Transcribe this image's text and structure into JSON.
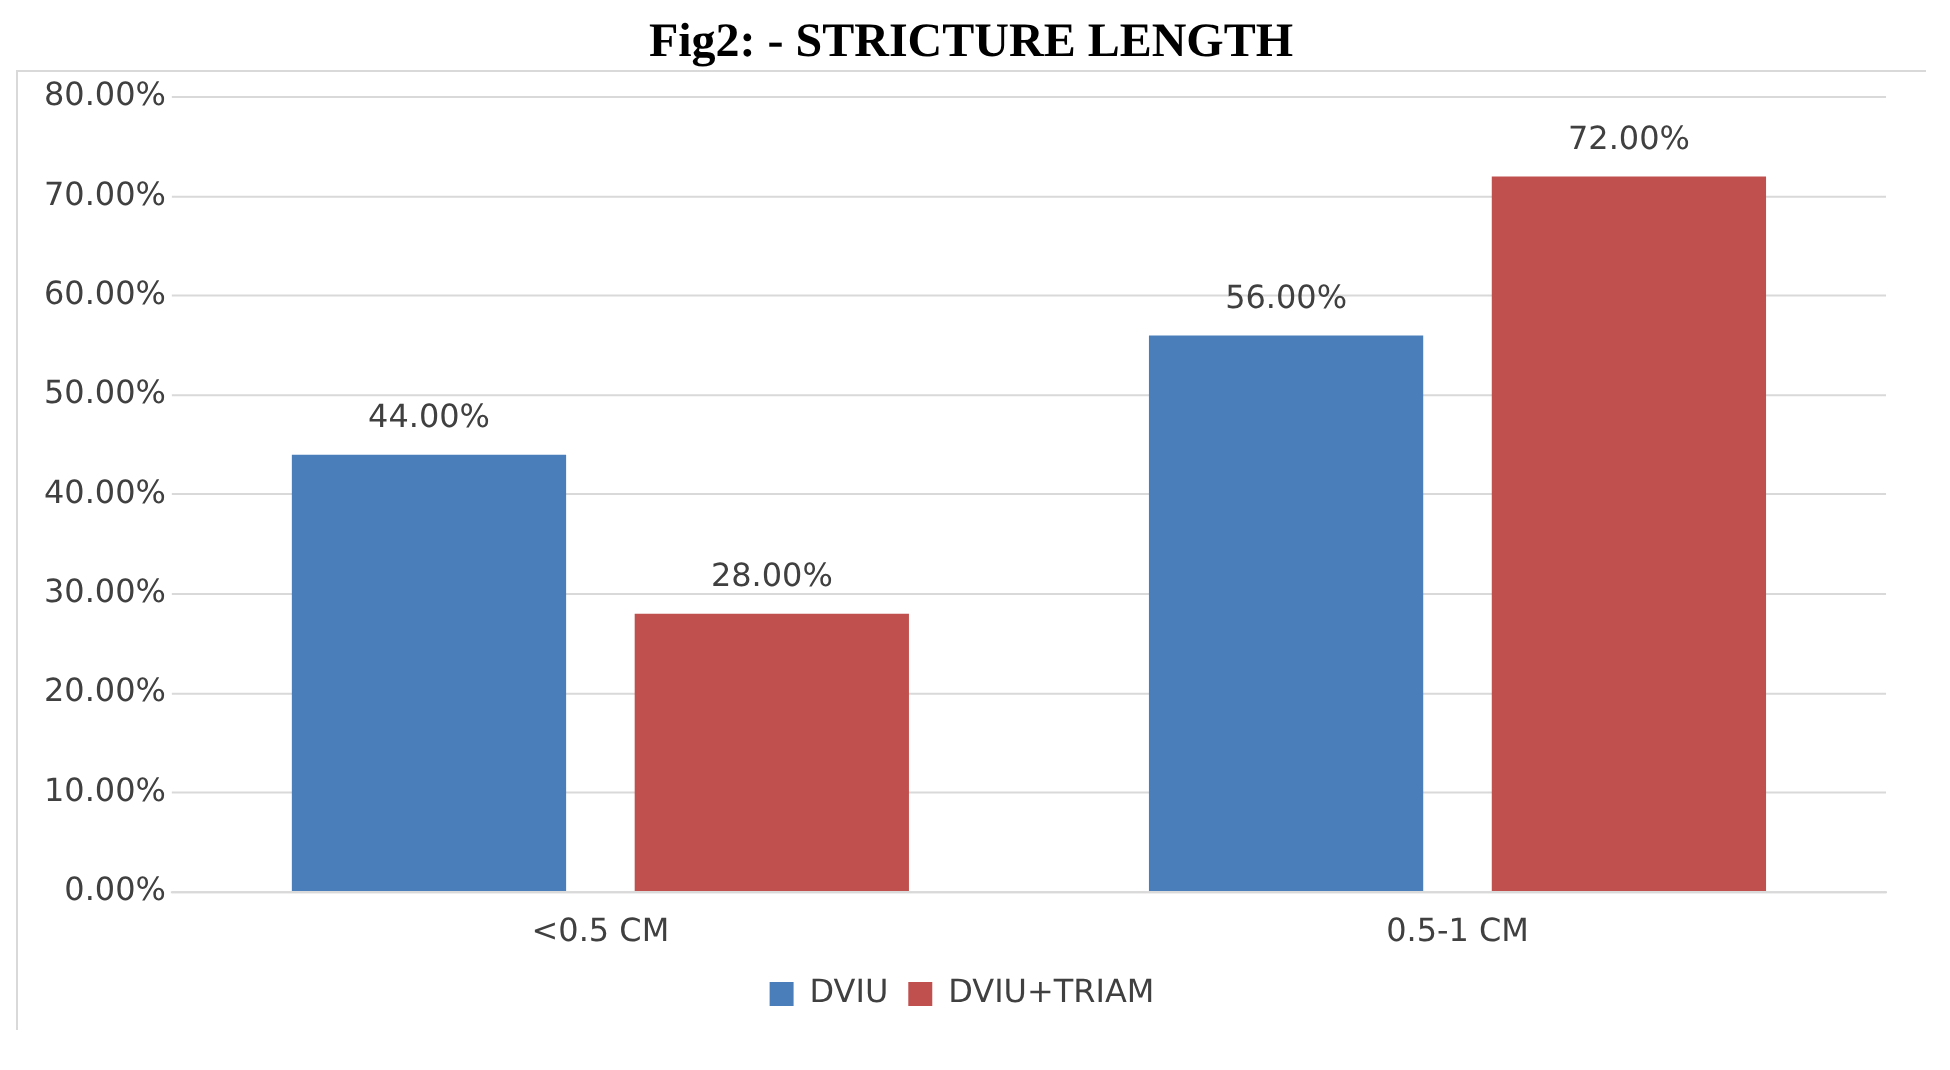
{
  "chart_data": {
    "type": "bar",
    "title": "Fig2: - STRICTURE LENGTH",
    "categories": [
      "<0.5 CM",
      "0.5-1 CM"
    ],
    "series": [
      {
        "name": "DVIU",
        "color": "#4a7ebb",
        "values": [
          44,
          56
        ],
        "value_labels": [
          "44.00%",
          "56.00%"
        ]
      },
      {
        "name": "DVIU+TRIAM",
        "color": "#c0504d",
        "values": [
          28,
          72
        ],
        "value_labels": [
          "28.00%",
          "72.00%"
        ]
      }
    ],
    "ylim": [
      0,
      80
    ],
    "yticks": [
      {
        "value": 0,
        "label": "0.00%"
      },
      {
        "value": 10,
        "label": "10.00%"
      },
      {
        "value": 20,
        "label": "20.00%"
      },
      {
        "value": 30,
        "label": "30.00%"
      },
      {
        "value": 40,
        "label": "40.00%"
      },
      {
        "value": 50,
        "label": "50.00%"
      },
      {
        "value": 60,
        "label": "60.00%"
      },
      {
        "value": 70,
        "label": "70.00%"
      },
      {
        "value": 80,
        "label": "80.00%"
      }
    ],
    "grid": "y",
    "legend": "bottom"
  }
}
